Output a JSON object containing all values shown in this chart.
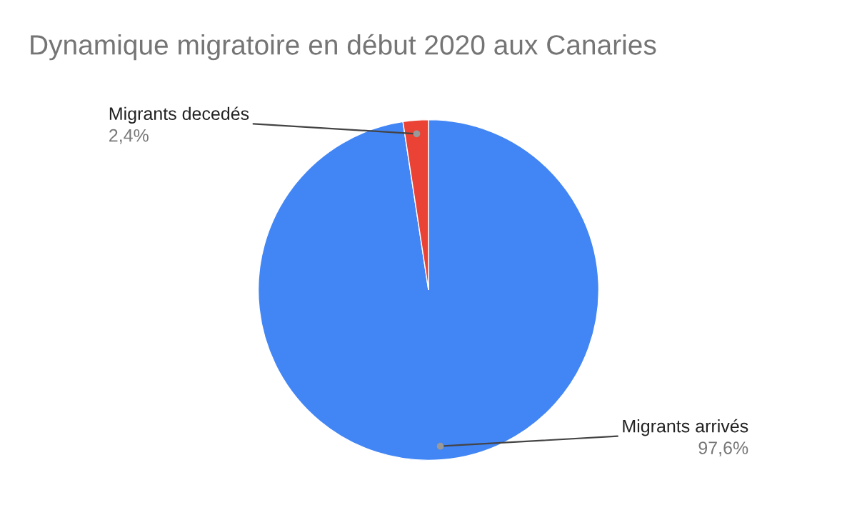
{
  "chart_data": {
    "type": "pie",
    "title": "Dynamique migratoire en début 2020 aux Canaries",
    "categories": [
      "Migrants arrivés",
      "Migrants decedés"
    ],
    "values": [
      97.6,
      2.4
    ],
    "colors": [
      "#4285f4",
      "#ea4335"
    ],
    "value_labels": [
      "97,6%",
      "2,4%"
    ],
    "legend": false
  }
}
